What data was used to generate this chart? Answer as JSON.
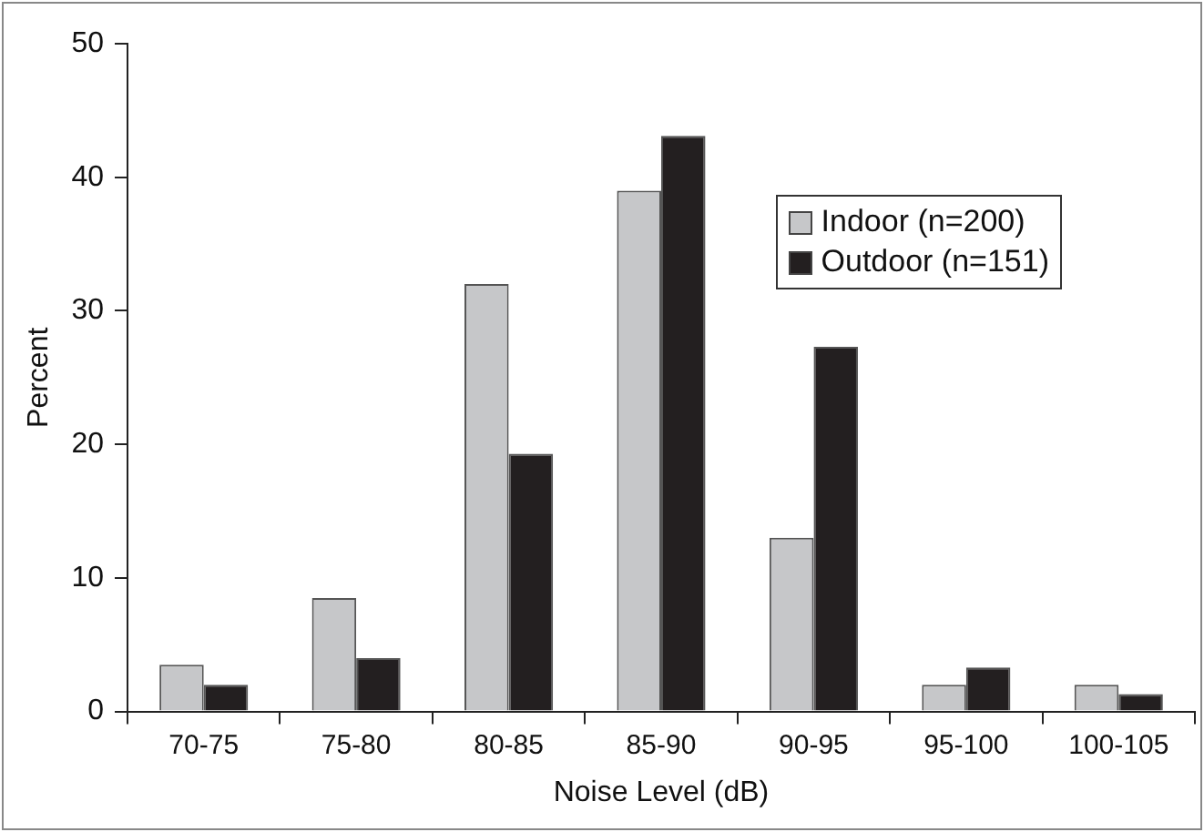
{
  "chart_data": {
    "type": "bar",
    "xlabel": "Noise Level (dB)",
    "ylabel": "Percent",
    "categories": [
      "70-75",
      "75-80",
      "80-85",
      "85-90",
      "90-95",
      "95-100",
      "100-105"
    ],
    "series": [
      {
        "name": "Indoor (n=200)",
        "color": "#c6c7c9",
        "values": [
          3.5,
          8.5,
          32,
          39,
          13,
          2,
          2
        ]
      },
      {
        "name": "Outdoor (n=151)",
        "color": "#231f20",
        "values": [
          2,
          4,
          19.3,
          43.1,
          27.3,
          3.3,
          1.3
        ]
      }
    ],
    "ylim": [
      0,
      50
    ],
    "yticks": [
      0,
      10,
      20,
      30,
      40,
      50
    ],
    "grid": false,
    "legend": "top right"
  }
}
